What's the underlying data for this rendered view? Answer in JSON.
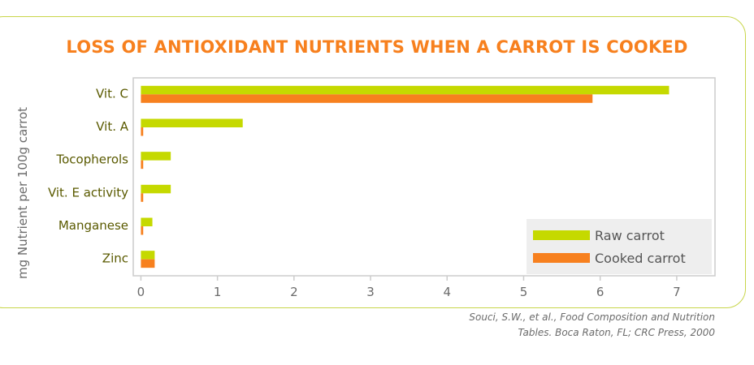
{
  "colors": {
    "raw": "#c5d900",
    "cooked": "#f7801e",
    "title": "#f7801e",
    "frame": "#c8d64a",
    "axis": "#cccccc",
    "category_text": "#5a5a00",
    "tick_text": "#6b6b6b",
    "legend_bg": "#eeeeee"
  },
  "chart_data": {
    "type": "bar",
    "orientation": "horizontal",
    "title": "LOSS OF ANTIOXIDANT NUTRIENTS WHEN A CARROT IS COOKED",
    "ylabel": "mg Nutrient per 100g carrot",
    "xlabel": "",
    "xlim": [
      -0.1,
      7.5
    ],
    "xticks": [
      0,
      1,
      2,
      3,
      4,
      5,
      6,
      7
    ],
    "categories": [
      "Vit. C",
      "Vit. A",
      "Tocopherols",
      "Vit. E activity",
      "Manganese",
      "Zinc"
    ],
    "series": [
      {
        "name": "Raw carrot",
        "values": [
          6.9,
          1.33,
          0.39,
          0.39,
          0.15,
          0.18
        ]
      },
      {
        "name": "Cooked carrot",
        "values": [
          5.9,
          0.03,
          0.03,
          0.03,
          0.03,
          0.18
        ]
      }
    ],
    "legend": "bottom-right",
    "grid": false
  },
  "source": {
    "line1": "Souci, S.W., et al., Food Composition and Nutrition",
    "line2": "Tables. Boca Raton, FL; CRC Press, 2000"
  }
}
